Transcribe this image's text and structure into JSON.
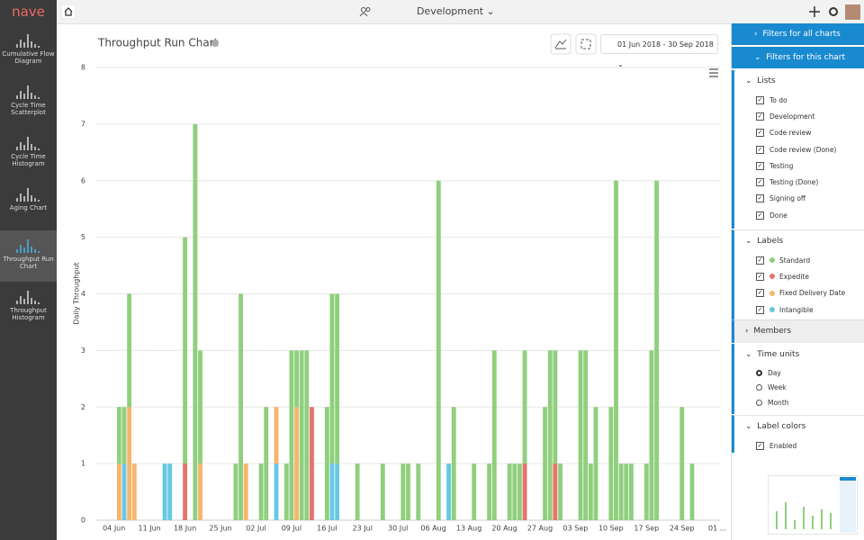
{
  "app": {
    "logo": "nave",
    "board": "Development"
  },
  "nav": [
    "Cumulative Flow Diagram",
    "Cycle Time Scatterplot",
    "Cycle Time Histogram",
    "Aging Chart",
    "Throughput Run Chart",
    "Throughput Histogram"
  ],
  "date_range": "01 Jun 2018 - 30 Sep 2018",
  "filters": {
    "all_charts": "Filters for all charts",
    "this_chart": "Filters for this chart",
    "lists_title": "Lists",
    "lists": [
      "To do",
      "Development",
      "Code review",
      "Code review (Done)",
      "Testing",
      "Testing (Done)",
      "Signing off",
      "Done"
    ],
    "labels_title": "Labels",
    "members_title": "Members",
    "time_units_title": "Time units",
    "time_units": [
      "Day",
      "Week",
      "Month"
    ],
    "label_colors_title": "Label colors",
    "label_colors": "Enabled"
  },
  "chart_data": {
    "type": "stacked-bar",
    "title": "Throughput Run Chart",
    "y_label": "Daily Throughput",
    "categories": [
      null,
      null,
      null,
      "04 Jun",
      null,
      null,
      null,
      null,
      null,
      null,
      "11 Jun",
      null,
      null,
      null,
      null,
      null,
      null,
      "18 Jun",
      null,
      null,
      null,
      null,
      null,
      null,
      "25 Jun",
      null,
      null,
      null,
      null,
      null,
      null,
      "02 Jul",
      null,
      null,
      null,
      null,
      null,
      null,
      "09 Jul",
      null,
      null,
      null,
      null,
      null,
      null,
      "16 Jul",
      null,
      null,
      null,
      null,
      null,
      null,
      "23 Jul",
      null,
      null,
      null,
      null,
      null,
      null,
      "30 Jul",
      null,
      null,
      null,
      null,
      null,
      null,
      "06 Aug",
      null,
      null,
      null,
      null,
      null,
      null,
      "13 Aug",
      null,
      null,
      null,
      null,
      null,
      null,
      "20 Aug",
      null,
      null,
      null,
      null,
      null,
      null,
      "27 Aug",
      null,
      null,
      null,
      null,
      null,
      null,
      "03 Sep",
      null,
      null,
      null,
      null,
      null,
      null,
      "10 Sep",
      null,
      null,
      null,
      null,
      null,
      null,
      "17 Sep",
      null,
      null,
      null,
      null,
      null,
      null,
      "24 Sep",
      null,
      null,
      null,
      null,
      null,
      null,
      "01 ..."
    ],
    "series": [
      {
        "name": "Standard",
        "color": "#8fcf7d",
        "values": [
          0,
          0,
          0,
          0,
          1,
          1,
          2,
          0,
          0,
          0,
          0,
          0,
          0,
          0,
          0,
          0,
          0,
          4,
          0,
          7,
          2,
          0,
          0,
          0,
          0,
          0,
          0,
          1,
          4,
          0,
          0,
          0,
          1,
          2,
          0,
          0,
          0,
          1,
          3,
          1,
          3,
          3,
          0,
          0,
          0,
          2,
          3,
          3,
          0,
          0,
          0,
          1,
          0,
          0,
          0,
          0,
          1,
          0,
          0,
          0,
          1,
          1,
          0,
          1,
          0,
          0,
          0,
          6,
          0,
          0,
          2,
          0,
          0,
          0,
          1,
          0,
          0,
          1,
          3,
          0,
          0,
          1,
          1,
          1,
          2,
          0,
          0,
          0,
          2,
          3,
          2,
          1,
          0,
          0,
          0,
          3,
          3,
          1,
          2,
          0,
          0,
          2,
          6,
          1,
          1,
          1,
          0,
          0,
          1,
          3,
          6,
          0,
          0,
          0,
          0,
          2,
          0,
          1,
          0,
          0,
          0,
          0,
          0
        ]
      },
      {
        "name": "Expedite",
        "color": "#e8726c",
        "values": [
          0,
          0,
          0,
          0,
          0,
          0,
          0,
          0,
          0,
          0,
          0,
          0,
          0,
          0,
          0,
          0,
          0,
          1,
          0,
          0,
          0,
          0,
          0,
          0,
          0,
          0,
          0,
          0,
          0,
          0,
          0,
          0,
          0,
          0,
          0,
          0,
          0,
          0,
          0,
          0,
          0,
          0,
          2,
          0,
          0,
          0,
          0,
          0,
          0,
          0,
          0,
          0,
          0,
          0,
          0,
          0,
          0,
          0,
          0,
          0,
          0,
          0,
          0,
          0,
          0,
          0,
          0,
          0,
          0,
          0,
          0,
          0,
          0,
          0,
          0,
          0,
          0,
          0,
          0,
          0,
          0,
          0,
          0,
          0,
          1,
          0,
          0,
          0,
          0,
          0,
          1,
          0,
          0,
          0,
          0,
          0,
          0,
          0,
          0,
          0,
          0,
          0,
          0,
          0,
          0,
          0,
          0,
          0,
          0,
          0,
          0,
          0,
          0,
          0,
          0,
          0,
          0,
          0,
          0,
          0,
          0,
          0,
          0
        ]
      },
      {
        "name": "Fixed Delivery Date",
        "color": "#f7b56b",
        "values": [
          0,
          0,
          0,
          0,
          1,
          0,
          2,
          1,
          0,
          0,
          0,
          0,
          0,
          0,
          0,
          0,
          0,
          0,
          0,
          0,
          1,
          0,
          0,
          0,
          0,
          0,
          0,
          0,
          0,
          1,
          0,
          0,
          0,
          0,
          0,
          1,
          0,
          0,
          0,
          2,
          0,
          0,
          0,
          0,
          0,
          0,
          0,
          0,
          0,
          0,
          0,
          0,
          0,
          0,
          0,
          0,
          0,
          0,
          0,
          0,
          0,
          0,
          0,
          0,
          0,
          0,
          0,
          0,
          0,
          0,
          0,
          0,
          0,
          0,
          0,
          0,
          0,
          0,
          0,
          0,
          0,
          0,
          0,
          0,
          0,
          0,
          0,
          0,
          0,
          0,
          0,
          0,
          0,
          0,
          0,
          0,
          0,
          0,
          0,
          0,
          0,
          0,
          0,
          0,
          0,
          0,
          0,
          0,
          0,
          0,
          0,
          0,
          0,
          0,
          0,
          0,
          0,
          0,
          0,
          0,
          0,
          0,
          0
        ]
      },
      {
        "name": "Intangible",
        "color": "#68c8e2",
        "values": [
          0,
          0,
          0,
          0,
          0,
          1,
          0,
          0,
          0,
          0,
          0,
          0,
          0,
          1,
          1,
          0,
          0,
          0,
          0,
          0,
          0,
          0,
          0,
          0,
          0,
          0,
          0,
          0,
          0,
          0,
          0,
          0,
          0,
          0,
          0,
          1,
          0,
          0,
          0,
          0,
          0,
          0,
          0,
          0,
          0,
          0,
          1,
          1,
          0,
          0,
          0,
          0,
          0,
          0,
          0,
          0,
          0,
          0,
          0,
          0,
          0,
          0,
          0,
          0,
          0,
          0,
          0,
          0,
          0,
          1,
          0,
          0,
          0,
          0,
          0,
          0,
          0,
          0,
          0,
          0,
          0,
          0,
          0,
          0,
          0,
          0,
          0,
          0,
          0,
          0,
          0,
          0,
          0,
          0,
          0,
          0,
          0,
          0,
          0,
          0,
          0,
          0,
          0,
          0,
          0,
          0,
          0,
          0,
          0,
          0,
          0,
          0,
          0,
          0,
          0,
          0,
          0,
          0,
          0,
          0,
          0,
          0,
          0
        ]
      }
    ],
    "ylim": [
      0,
      8
    ],
    "yticks": [
      0,
      1,
      2,
      3,
      4,
      5,
      6,
      7,
      8
    ],
    "grid": true
  }
}
